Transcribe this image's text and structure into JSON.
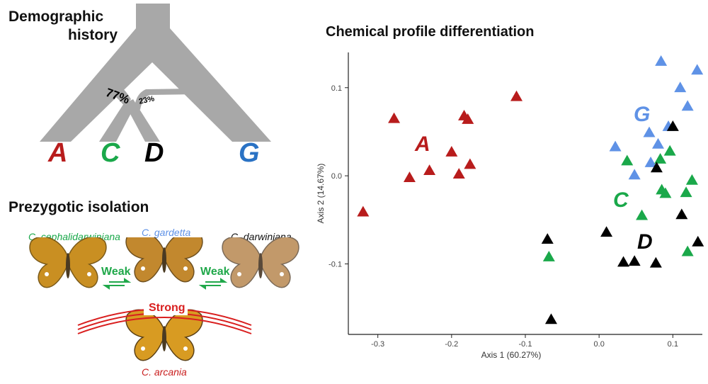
{
  "left": {
    "demographic_title": [
      "Demographic",
      "history"
    ],
    "pct_77": "77%",
    "pct_23": "23%",
    "leaf_A": "A",
    "leaf_C": "C",
    "leaf_D": "D",
    "leaf_G": "G",
    "prezygotic_title": "Prezygotic isolation",
    "species_cephal": "C. cephalidarwiniana",
    "species_gardetta": "C. gardetta",
    "species_darwiniana": "C. darwiniana",
    "species_arcania": "C. arcania",
    "weak_left": "Weak",
    "weak_right": "Weak",
    "strong": "Strong"
  },
  "colors": {
    "A": "#b81c1c",
    "C": "#1aa84a",
    "D": "#000000",
    "G": "#5f92e6",
    "G_label": "#2a72c4",
    "tree": "#a8a8a8"
  },
  "chart_data": {
    "type": "scatter",
    "title": "Chemical profile differentiation",
    "xlabel": "Axis 1 (60.27%)",
    "ylabel": "Axis 2 (14.67%)",
    "xlim": [
      -0.34,
      0.14
    ],
    "ylim": [
      -0.18,
      0.14
    ],
    "xticks": [
      -0.3,
      -0.2,
      -0.1,
      0.0,
      0.1
    ],
    "xtick_labels": [
      "-0.3",
      "-0.2",
      "-0.1",
      "0.0",
      "0.1"
    ],
    "yticks": [
      -0.1,
      0.0,
      0.1
    ],
    "ytick_labels": [
      "-0.1",
      "0.0",
      "0.1"
    ],
    "marker": "triangle",
    "grid": false,
    "series": [
      {
        "name": "A",
        "color": "#b81c1c",
        "points": [
          [
            -0.32,
            -0.041
          ],
          [
            -0.278,
            0.065
          ],
          [
            -0.257,
            -0.002
          ],
          [
            -0.23,
            0.006
          ],
          [
            -0.2,
            0.027
          ],
          [
            -0.19,
            0.002
          ],
          [
            -0.183,
            0.068
          ],
          [
            -0.178,
            0.064
          ],
          [
            -0.175,
            0.013
          ],
          [
            -0.112,
            0.09
          ]
        ]
      },
      {
        "name": "G",
        "color": "#5f92e6",
        "points": [
          [
            0.022,
            0.033
          ],
          [
            0.048,
            0.001
          ],
          [
            0.068,
            0.049
          ],
          [
            0.07,
            0.015
          ],
          [
            0.08,
            0.036
          ],
          [
            0.084,
            0.13
          ],
          [
            0.094,
            0.056
          ],
          [
            0.11,
            0.1
          ],
          [
            0.12,
            0.079
          ],
          [
            0.133,
            0.12
          ]
        ]
      },
      {
        "name": "C",
        "color": "#1aa84a",
        "points": [
          [
            -0.068,
            -0.092
          ],
          [
            0.038,
            0.017
          ],
          [
            0.058,
            -0.045
          ],
          [
            0.083,
            0.019
          ],
          [
            0.085,
            -0.016
          ],
          [
            0.09,
            -0.02
          ],
          [
            0.096,
            0.028
          ],
          [
            0.118,
            -0.019
          ],
          [
            0.12,
            -0.086
          ],
          [
            0.126,
            -0.005
          ]
        ]
      },
      {
        "name": "D",
        "color": "#000000",
        "points": [
          [
            -0.07,
            -0.072
          ],
          [
            -0.065,
            -0.163
          ],
          [
            0.01,
            -0.064
          ],
          [
            0.033,
            -0.098
          ],
          [
            0.048,
            -0.097
          ],
          [
            0.077,
            -0.099
          ],
          [
            0.078,
            0.009
          ],
          [
            0.1,
            0.056
          ],
          [
            0.112,
            -0.044
          ],
          [
            0.134,
            -0.075
          ]
        ]
      }
    ],
    "group_labels": [
      "A",
      "G",
      "C",
      "D"
    ]
  }
}
